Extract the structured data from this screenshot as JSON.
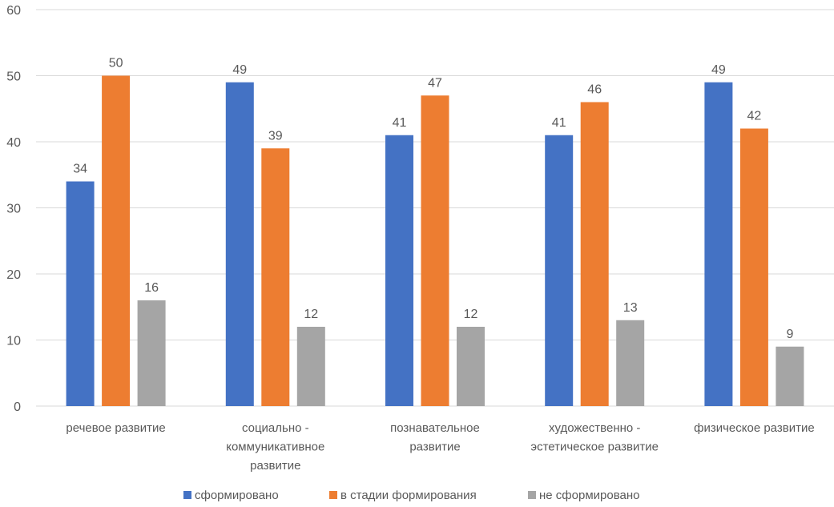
{
  "chart_data": {
    "type": "bar",
    "categories": [
      [
        "речевое развитие"
      ],
      [
        "социально -",
        "коммуникативное",
        "развитие"
      ],
      [
        "познавательное",
        "развитие"
      ],
      [
        "художественно -",
        "эстетическое развитие"
      ],
      [
        "физическое развитие"
      ]
    ],
    "series": [
      {
        "name": "сформировано",
        "color": "#4472C4",
        "values": [
          34,
          49,
          41,
          41,
          49
        ]
      },
      {
        "name": "в стадии формирования",
        "color": "#ED7D31",
        "values": [
          50,
          39,
          47,
          46,
          42
        ]
      },
      {
        "name": "не сформировано",
        "color": "#A5A5A5",
        "values": [
          16,
          12,
          12,
          13,
          9
        ]
      }
    ],
    "yticks": [
      0,
      10,
      20,
      30,
      40,
      50,
      60
    ],
    "ylim": [
      0,
      60
    ],
    "grid": true,
    "legend": "bottom",
    "data_labels": true
  }
}
